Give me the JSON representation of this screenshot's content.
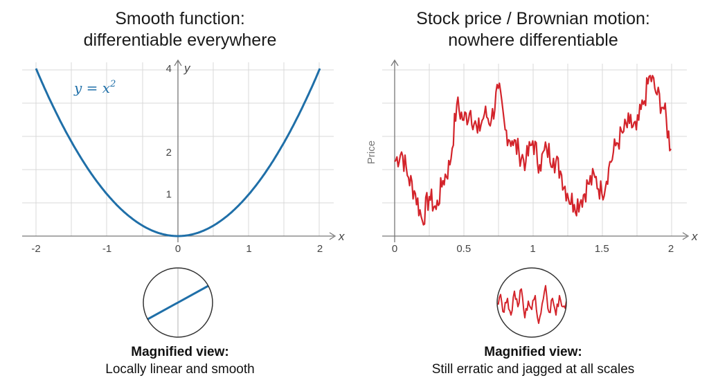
{
  "left": {
    "title_line1": "Smooth function:",
    "title_line2": "differentiable everywhere",
    "function_label": "y = x",
    "function_exponent": "2",
    "x_axis_name": "x",
    "y_axis_name": "y",
    "caption_bold": "Magnified view:",
    "caption_text": "Locally linear and smooth"
  },
  "right": {
    "title_line1": "Stock price / Brownian motion:",
    "title_line2": "nowhere differentiable",
    "x_axis_name": "x",
    "y_axis_name": "Price",
    "caption_bold": "Magnified view:",
    "caption_text": "Still erratic and jagged at all scales"
  },
  "colors": {
    "smooth": "#1f6fa8",
    "brownian": "#d3242b",
    "grid": "#d9d9d9",
    "axis": "#777777"
  },
  "chart_data": [
    {
      "type": "line",
      "title": "Smooth function: differentiable everywhere",
      "xlabel": "x",
      "ylabel": "y",
      "function": "y = x^2",
      "xlim": [
        -2,
        2
      ],
      "ylim": [
        0,
        4
      ],
      "xticks": [
        "-2",
        "-1",
        "0",
        "1",
        "2"
      ],
      "yticks": [
        "1",
        "2",
        "4"
      ],
      "x": [
        -2,
        -1.5,
        -1,
        -0.5,
        0,
        0.5,
        1,
        1.5,
        2
      ],
      "y": [
        4,
        2.25,
        1,
        0.25,
        0,
        0.25,
        1,
        2.25,
        4
      ]
    },
    {
      "type": "line",
      "title": "Stock price / Brownian motion: nowhere differentiable",
      "xlabel": "x",
      "ylabel": "Price",
      "xlim": [
        0,
        2
      ],
      "xticks": [
        "0",
        "0.5",
        "1",
        "1.5",
        "2"
      ],
      "x": [
        0,
        0.05,
        0.1,
        0.15,
        0.2,
        0.25,
        0.3,
        0.35,
        0.4,
        0.45,
        0.5,
        0.55,
        0.6,
        0.65,
        0.7,
        0.75,
        0.8,
        0.85,
        0.9,
        0.95,
        1.0,
        1.05,
        1.1,
        1.15,
        1.2,
        1.25,
        1.3,
        1.35,
        1.4,
        1.45,
        1.5,
        1.55,
        1.6,
        1.65,
        1.7,
        1.75,
        1.8,
        1.85,
        1.9,
        1.95,
        2.0
      ],
      "y": [
        0.42,
        0.48,
        0.32,
        0.22,
        0.05,
        0.2,
        0.12,
        0.3,
        0.4,
        0.78,
        0.68,
        0.74,
        0.6,
        0.72,
        0.68,
        0.88,
        0.62,
        0.55,
        0.48,
        0.42,
        0.55,
        0.4,
        0.5,
        0.44,
        0.36,
        0.22,
        0.15,
        0.18,
        0.28,
        0.32,
        0.22,
        0.38,
        0.52,
        0.6,
        0.66,
        0.62,
        0.78,
        0.96,
        0.84,
        0.75,
        0.5
      ]
    },
    {
      "type": "line",
      "title": "Magnified view: Locally linear and smooth",
      "x": [
        -1,
        1
      ],
      "y": [
        -0.55,
        0.55
      ]
    },
    {
      "type": "line",
      "title": "Magnified view: Still erratic and jagged at all scales",
      "x": [
        0,
        0.05,
        0.1,
        0.15,
        0.2,
        0.25,
        0.3,
        0.35,
        0.4,
        0.45,
        0.5,
        0.55,
        0.6,
        0.65,
        0.7,
        0.75,
        0.8,
        0.85,
        0.9,
        0.95,
        1.0
      ],
      "y": [
        0.45,
        0.62,
        0.3,
        0.55,
        0.25,
        0.68,
        0.4,
        0.72,
        0.2,
        0.5,
        0.35,
        0.6,
        0.1,
        0.45,
        0.78,
        0.3,
        0.55,
        0.25,
        0.6,
        0.4,
        0.5
      ]
    }
  ]
}
